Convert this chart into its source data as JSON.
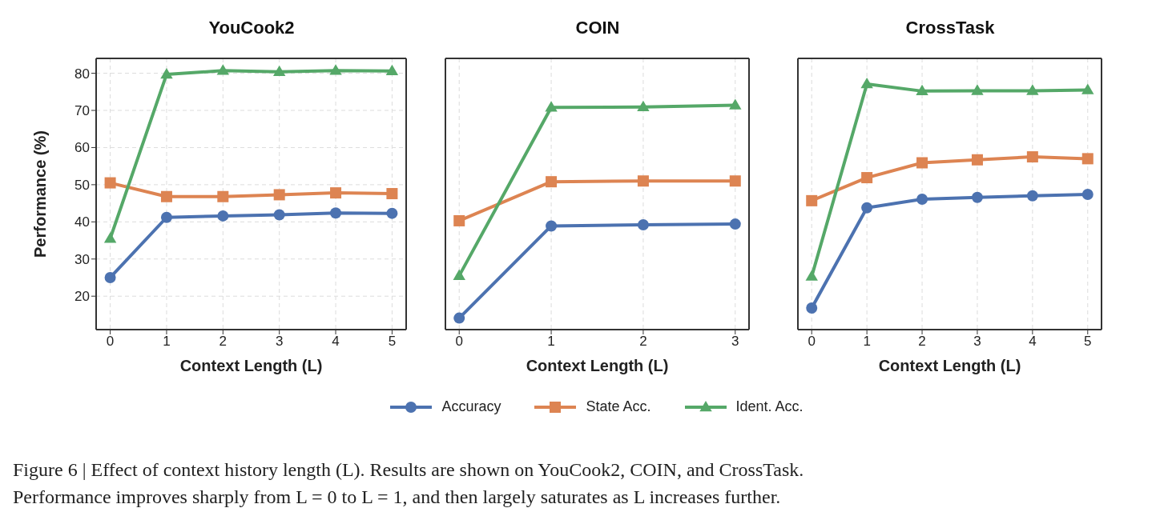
{
  "chart_data": [
    {
      "type": "line",
      "title": "YouCook2",
      "xlabel": "Context Length (L)",
      "ylabel": "Performance (%)",
      "x": [
        0,
        1,
        2,
        3,
        4,
        5
      ],
      "xlim": [
        -0.25,
        5.25
      ],
      "xticks": [
        0,
        1,
        2,
        3,
        4,
        5
      ],
      "ylim": [
        11,
        84
      ],
      "yticks": [
        20,
        30,
        40,
        50,
        60,
        70,
        80
      ],
      "grid": true,
      "legend": "bottom",
      "series": [
        {
          "name": "Accuracy",
          "color": "#4c72b0",
          "marker": "circle",
          "values": [
            25.0,
            41.2,
            41.6,
            41.9,
            42.4,
            42.3
          ]
        },
        {
          "name": "State Acc.",
          "color": "#dd8452",
          "marker": "square",
          "values": [
            50.5,
            46.8,
            46.8,
            47.3,
            47.8,
            47.6
          ]
        },
        {
          "name": "Ident. Acc.",
          "color": "#55a868",
          "marker": "triangle",
          "values": [
            35.5,
            79.7,
            80.7,
            80.4,
            80.7,
            80.6
          ]
        }
      ]
    },
    {
      "type": "line",
      "title": "COIN",
      "xlabel": "Context Length (L)",
      "x": [
        0,
        1,
        2,
        3
      ],
      "xlim": [
        -0.15,
        3.15
      ],
      "xticks": [
        0,
        1,
        2,
        3
      ],
      "ylim": [
        11,
        84
      ],
      "yticks": [
        20,
        30,
        40,
        50,
        60,
        70,
        80
      ],
      "tick_labels": "x",
      "grid": true,
      "annotations": [
        "Figure 6 | Effect of context history length (L). Results are shown on YouCook2, COIN, and CrossTask.",
        "Performance improves sharply from L = 0 to L = 1, and then largely saturates as L increases further."
      ],
      "series": [
        {
          "color": "#4c72b0",
          "marker": "circle",
          "values": [
            14.1,
            38.9,
            39.2,
            39.4
          ]
        },
        {
          "color": "#dd8452",
          "marker": "square",
          "values": [
            40.3,
            50.8,
            51.0,
            51.0
          ]
        },
        {
          "color": "#55a868",
          "marker": "triangle",
          "values": [
            25.5,
            70.8,
            70.9,
            71.4
          ]
        }
      ]
    },
    {
      "type": "line",
      "title": "CrossTask",
      "xlabel": "Context Length (L)",
      "x": [
        0,
        1,
        2,
        3,
        4,
        5
      ],
      "xlim": [
        -0.25,
        5.25
      ],
      "xticks": [
        0,
        1,
        2,
        3,
        4,
        5
      ],
      "ylim": [
        11,
        84
      ],
      "yticks": [
        20,
        30,
        40,
        50,
        60,
        70,
        80
      ],
      "tick_labels": "x",
      "grid": true,
      "series": [
        {
          "color": "#4c72b0",
          "marker": "circle",
          "values": [
            16.8,
            43.8,
            46.1,
            46.6,
            47.0,
            47.4
          ]
        },
        {
          "color": "#dd8452",
          "marker": "square",
          "values": [
            45.7,
            51.9,
            55.9,
            56.7,
            57.5,
            57.0
          ]
        },
        {
          "color": "#55a868",
          "marker": "triangle",
          "values": [
            25.3,
            77.1,
            75.2,
            75.3,
            75.3,
            75.5
          ]
        }
      ]
    }
  ]
}
